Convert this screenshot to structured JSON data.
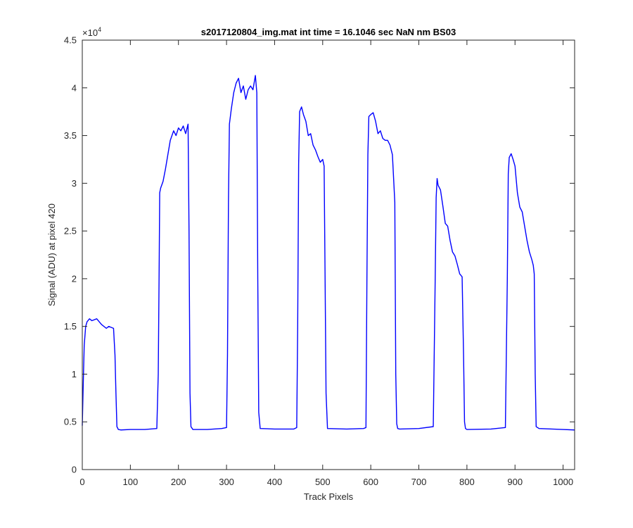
{
  "chart_data": {
    "type": "line",
    "title": "s2017120804_img.mat int time = 16.1046 sec  NaN nm BS03",
    "xlabel": "Track Pixels",
    "ylabel": "Signal (ADU) at pixel 420",
    "xlim": [
      0,
      1024
    ],
    "ylim": [
      0,
      45000
    ],
    "x_ticks": [
      0,
      100,
      200,
      300,
      400,
      500,
      600,
      700,
      800,
      900,
      1000
    ],
    "y_ticks": [
      0,
      5000,
      10000,
      15000,
      20000,
      25000,
      30000,
      35000,
      40000,
      45000
    ],
    "y_tick_labels": [
      "0",
      "0.5",
      "1",
      "1.5",
      "2",
      "2.5",
      "3",
      "3.5",
      "4",
      "4.5"
    ],
    "y_exponent_label": "×10",
    "y_exponent_power": "4",
    "grid": false,
    "series": [
      {
        "color": "#0000ff",
        "x": [
          0,
          2,
          4,
          7,
          10,
          15,
          20,
          30,
          40,
          50,
          55,
          60,
          65,
          68,
          70,
          72,
          75,
          80,
          100,
          130,
          155,
          158,
          160,
          161,
          163,
          168,
          173,
          178,
          183,
          190,
          195,
          200,
          205,
          210,
          215,
          220,
          222,
          224,
          226,
          230,
          260,
          290,
          300,
          302,
          304,
          306,
          310,
          315,
          320,
          325,
          330,
          335,
          340,
          345,
          350,
          355,
          360,
          363,
          365,
          367,
          370,
          400,
          440,
          446,
          448,
          450,
          452,
          456,
          460,
          465,
          470,
          475,
          480,
          485,
          490,
          495,
          500,
          503,
          505,
          507,
          510,
          550,
          585,
          590,
          592,
          594,
          596,
          600,
          605,
          610,
          615,
          620,
          625,
          630,
          635,
          640,
          645,
          650,
          652,
          654,
          656,
          660,
          700,
          730,
          734,
          736,
          738,
          740,
          745,
          750,
          755,
          760,
          765,
          770,
          775,
          780,
          785,
          790,
          793,
          795,
          797,
          800,
          850,
          880,
          884,
          886,
          888,
          892,
          896,
          900,
          905,
          910,
          915,
          920,
          925,
          930,
          935,
          938,
          940,
          942,
          944,
          950,
          1000,
          1024
        ],
        "y": [
          4600,
          9000,
          13000,
          15000,
          15500,
          15800,
          15600,
          15800,
          15200,
          14800,
          15000,
          14900,
          14800,
          12000,
          8000,
          4500,
          4200,
          4150,
          4200,
          4200,
          4300,
          10000,
          22000,
          29000,
          29500,
          30200,
          31500,
          33000,
          34500,
          35500,
          35000,
          35800,
          35500,
          36000,
          35200,
          36200,
          25000,
          8000,
          4500,
          4200,
          4200,
          4300,
          4400,
          12000,
          28000,
          36200,
          37800,
          39500,
          40500,
          41000,
          39500,
          40200,
          38800,
          39800,
          40200,
          39800,
          41300,
          39500,
          20000,
          6000,
          4300,
          4250,
          4250,
          4400,
          15000,
          32000,
          37500,
          38000,
          37200,
          36500,
          35000,
          35200,
          34000,
          33500,
          32800,
          32200,
          32500,
          31800,
          20000,
          8000,
          4300,
          4250,
          4300,
          4400,
          20000,
          33000,
          37000,
          37200,
          37400,
          36500,
          35200,
          35500,
          34700,
          34500,
          34500,
          34000,
          33000,
          28000,
          10000,
          4800,
          4300,
          4250,
          4300,
          4500,
          20000,
          28500,
          30500,
          29800,
          29300,
          27600,
          25800,
          25500,
          24000,
          22800,
          22400,
          21500,
          20500,
          20200,
          12000,
          5000,
          4300,
          4200,
          4250,
          4400,
          20000,
          31000,
          32700,
          33100,
          32500,
          31800,
          29000,
          27500,
          27000,
          25500,
          24000,
          22800,
          22000,
          21400,
          20500,
          10000,
          4500,
          4300,
          4200,
          4150
        ]
      }
    ]
  }
}
